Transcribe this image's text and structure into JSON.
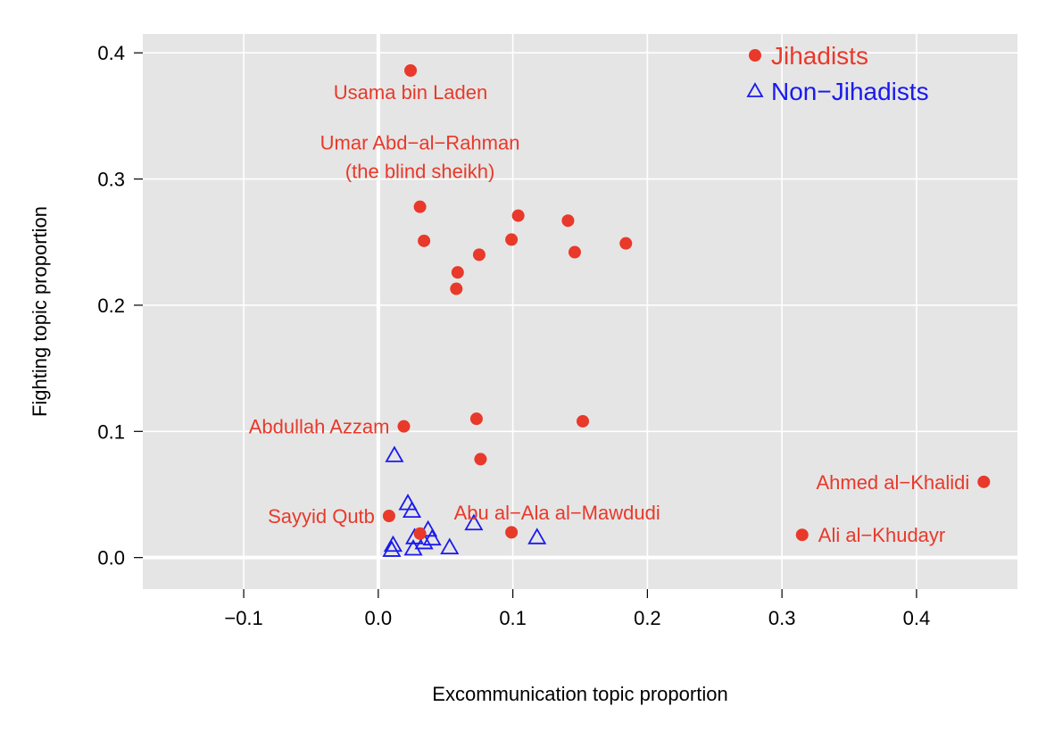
{
  "chart_data": {
    "type": "scatter",
    "xlabel": "Excommunication topic proportion",
    "ylabel": "Fighting topic proportion",
    "xlim": [
      -0.175,
      0.475
    ],
    "ylim": [
      -0.025,
      0.415
    ],
    "x_ticks": [
      -0.1,
      0.0,
      0.1,
      0.2,
      0.3,
      0.4
    ],
    "x_tick_labels": [
      "−0.1",
      "0.0",
      "0.1",
      "0.2",
      "0.3",
      "0.4"
    ],
    "y_ticks": [
      0.0,
      0.1,
      0.2,
      0.3,
      0.4
    ],
    "y_tick_labels": [
      "0.0",
      "0.1",
      "0.2",
      "0.3",
      "0.4"
    ],
    "grid": true,
    "background": "#e5e5e5",
    "legend_position": "top-right",
    "series": [
      {
        "name": "Jihadists",
        "marker": "filled-circle",
        "color": "#e8392a",
        "points": [
          {
            "x": 0.024,
            "y": 0.386
          },
          {
            "x": 0.031,
            "y": 0.278
          },
          {
            "x": 0.034,
            "y": 0.251
          },
          {
            "x": 0.059,
            "y": 0.226
          },
          {
            "x": 0.058,
            "y": 0.213
          },
          {
            "x": 0.075,
            "y": 0.24
          },
          {
            "x": 0.099,
            "y": 0.252
          },
          {
            "x": 0.104,
            "y": 0.271
          },
          {
            "x": 0.141,
            "y": 0.267
          },
          {
            "x": 0.146,
            "y": 0.242
          },
          {
            "x": 0.184,
            "y": 0.249
          },
          {
            "x": 0.019,
            "y": 0.104
          },
          {
            "x": 0.073,
            "y": 0.11
          },
          {
            "x": 0.152,
            "y": 0.108
          },
          {
            "x": 0.076,
            "y": 0.078
          },
          {
            "x": 0.008,
            "y": 0.033
          },
          {
            "x": 0.031,
            "y": 0.019
          },
          {
            "x": 0.099,
            "y": 0.02
          },
          {
            "x": 0.45,
            "y": 0.06
          },
          {
            "x": 0.315,
            "y": 0.018
          }
        ]
      },
      {
        "name": "Non−Jihadists",
        "marker": "open-triangle",
        "color": "#1a1aee",
        "points": [
          {
            "x": 0.012,
            "y": 0.081
          },
          {
            "x": 0.022,
            "y": 0.043
          },
          {
            "x": 0.025,
            "y": 0.037
          },
          {
            "x": 0.071,
            "y": 0.027
          },
          {
            "x": 0.037,
            "y": 0.022
          },
          {
            "x": 0.027,
            "y": 0.016
          },
          {
            "x": 0.04,
            "y": 0.015
          },
          {
            "x": 0.118,
            "y": 0.016
          },
          {
            "x": 0.034,
            "y": 0.012
          },
          {
            "x": 0.011,
            "y": 0.01
          },
          {
            "x": 0.053,
            "y": 0.008
          },
          {
            "x": 0.026,
            "y": 0.007
          },
          {
            "x": 0.01,
            "y": 0.006
          }
        ]
      }
    ],
    "annotations": [
      {
        "text": "Usama bin Laden",
        "x": 0.024,
        "y": 0.386
      },
      {
        "text": "Umar Abd−al−Rahman",
        "x": 0.031,
        "y": 0.278
      },
      {
        "text": "(the blind sheikh)",
        "x": 0.031,
        "y": 0.278
      },
      {
        "text": "Abdullah Azzam",
        "x": 0.019,
        "y": 0.104
      },
      {
        "text": "Sayyid Qutb",
        "x": 0.008,
        "y": 0.033
      },
      {
        "text": "Abu al−Ala al−Mawdudi",
        "x": 0.031,
        "y": 0.019
      },
      {
        "text": "Ahmed al−Khalidi",
        "x": 0.45,
        "y": 0.06
      },
      {
        "text": "Ali al−Khudayr",
        "x": 0.315,
        "y": 0.018
      }
    ]
  }
}
